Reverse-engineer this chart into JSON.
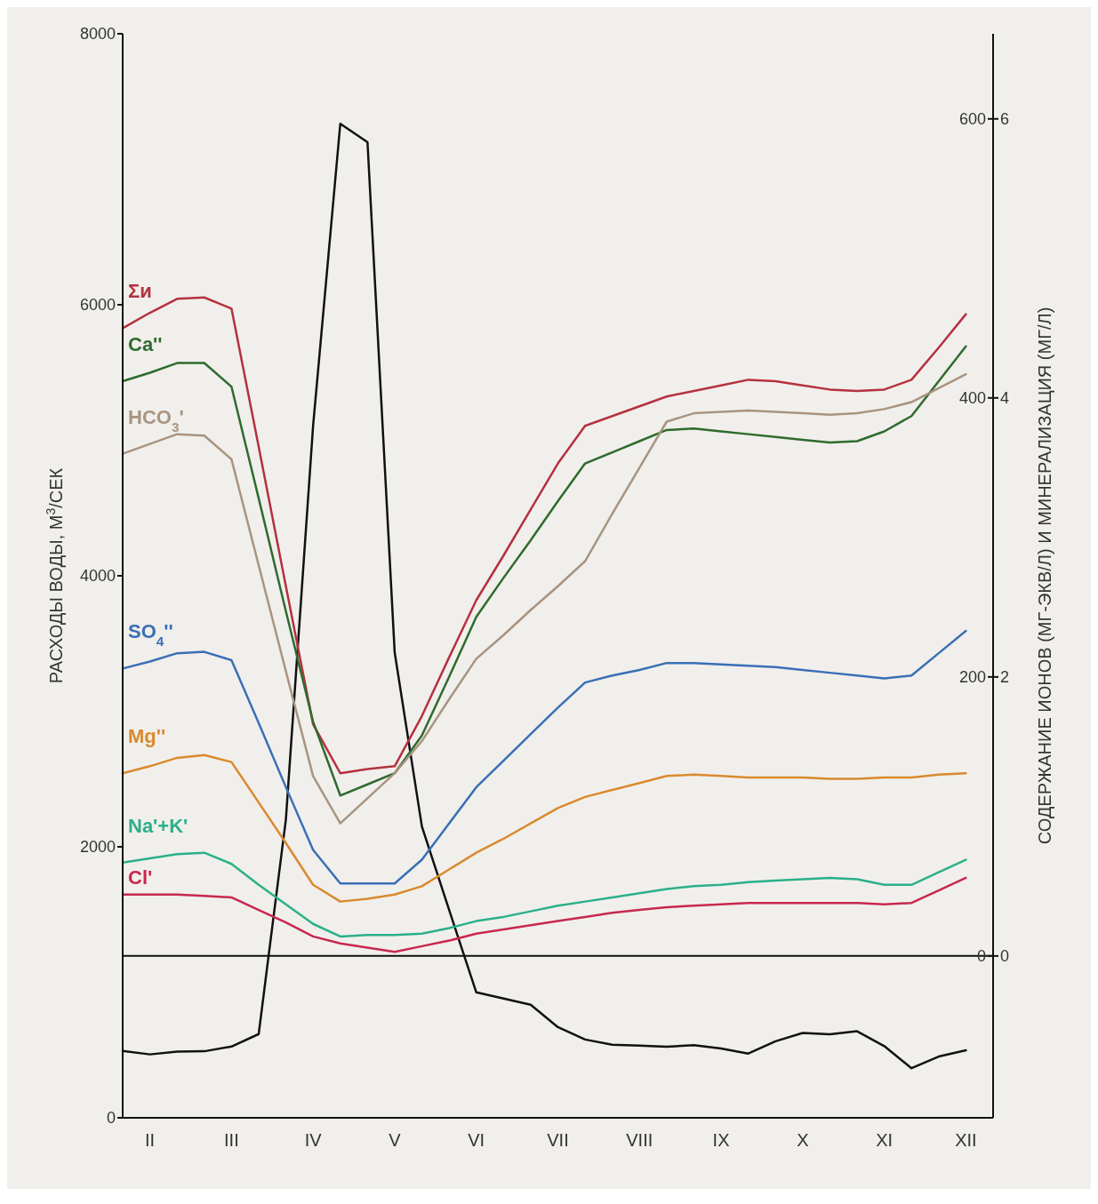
{
  "chart_data": {
    "type": "line",
    "ylabel": "РАСХОДЫ ВОДЫ, М$^{3}$/СЕК",
    "y2label": "СОДЕРЖАНИЕ ИОНОВ (МГ-ЭКВ/Л) И МИНЕРАЛИЗАЦИЯ (МГ/Л)",
    "categories": [
      null,
      "II",
      null,
      null,
      "III",
      null,
      null,
      "IV",
      null,
      null,
      "V",
      null,
      null,
      "VI",
      null,
      null,
      "VII",
      null,
      null,
      "VIII",
      null,
      null,
      "IX",
      null,
      null,
      "X",
      null,
      null,
      "XI",
      null,
      null,
      "XII",
      null
    ],
    "ylim": [
      0,
      8000
    ],
    "yticks": [
      0,
      2000,
      4000,
      6000,
      8000
    ],
    "y2lim": [
      -116,
      661
    ],
    "y2ticks": [
      0,
      200,
      400,
      600
    ],
    "y3lim": [
      -1.16,
      6.61
    ],
    "y3ticks": [
      0,
      2,
      4,
      6
    ],
    "legend": false,
    "marker": "none",
    "line_style": "solid",
    "ref_lines": [
      {
        "axis": "y2",
        "value": 0,
        "color": "#111111"
      }
    ],
    "series": [
      {
        "color": "#111111",
        "values": [
          494,
          468,
          488,
          491,
          526,
          618,
          2203,
          5106,
          7336,
          7200,
          3434,
          2150,
          1535,
          926,
          880,
          834,
          669,
          578,
          539,
          532,
          525,
          536,
          512,
          474,
          565,
          626,
          617,
          639,
          529,
          366,
          452,
          498,
          null
        ]
      },
      {
        "name": "Σи",
        "color": "#b5313f",
        "axis": "y2",
        "values": [
          450,
          461,
          471,
          472,
          464,
          365,
          265,
          166,
          131,
          134,
          136,
          172,
          214,
          255,
          287,
          320,
          353,
          380,
          387,
          394,
          401,
          405,
          409,
          413,
          412,
          409,
          406,
          405,
          406,
          413,
          436,
          460,
          null
        ]
      },
      {
        "name": "Ca''",
        "color": "#2e6b2e",
        "axis": "y3",
        "values": [
          4.12,
          4.18,
          4.25,
          4.25,
          4.08,
          3.28,
          2.47,
          1.68,
          1.15,
          1.23,
          1.31,
          1.58,
          2.0,
          2.43,
          2.71,
          2.98,
          3.26,
          3.53,
          3.61,
          3.69,
          3.77,
          3.78,
          3.76,
          3.74,
          3.72,
          3.7,
          3.68,
          3.69,
          3.76,
          3.87,
          4.12,
          4.37,
          null
        ]
      },
      {
        "name": "HCO$_{3}$'",
        "color": "#a89480",
        "axis": "y3",
        "values": [
          3.6,
          3.67,
          3.74,
          3.73,
          3.56,
          2.8,
          2.04,
          1.29,
          0.95,
          1.13,
          1.31,
          1.54,
          1.84,
          2.13,
          2.3,
          2.48,
          2.65,
          2.83,
          3.17,
          3.5,
          3.83,
          3.89,
          3.9,
          3.91,
          3.9,
          3.89,
          3.88,
          3.89,
          3.92,
          3.97,
          4.07,
          4.17,
          null
        ]
      },
      {
        "name": "SO$_{4}$''",
        "color": "#3a6fb5",
        "axis": "y3",
        "values": [
          2.06,
          2.11,
          2.17,
          2.18,
          2.12,
          1.67,
          1.21,
          0.76,
          0.52,
          0.52,
          0.52,
          0.69,
          0.95,
          1.21,
          1.4,
          1.59,
          1.78,
          1.96,
          2.01,
          2.05,
          2.1,
          2.1,
          2.09,
          2.08,
          2.07,
          2.05,
          2.03,
          2.01,
          1.99,
          2.01,
          2.17,
          2.33,
          null
        ]
      },
      {
        "name": "Mg''",
        "color": "#d98a2e",
        "axis": "y3",
        "values": [
          1.31,
          1.36,
          1.42,
          1.44,
          1.39,
          1.1,
          0.81,
          0.51,
          0.39,
          0.41,
          0.44,
          0.5,
          0.62,
          0.74,
          0.84,
          0.95,
          1.06,
          1.14,
          1.19,
          1.24,
          1.29,
          1.3,
          1.29,
          1.28,
          1.28,
          1.28,
          1.27,
          1.27,
          1.28,
          1.28,
          1.3,
          1.31,
          null
        ]
      },
      {
        "name": "Na'+K'",
        "color": "#2bb08a",
        "axis": "y3",
        "values": [
          0.67,
          0.7,
          0.73,
          0.74,
          0.66,
          0.51,
          0.37,
          0.23,
          0.14,
          0.15,
          0.15,
          0.16,
          0.2,
          0.25,
          0.28,
          0.32,
          0.36,
          0.39,
          0.42,
          0.45,
          0.48,
          0.5,
          0.51,
          0.53,
          0.54,
          0.55,
          0.56,
          0.55,
          0.51,
          0.51,
          0.6,
          0.69,
          null
        ]
      },
      {
        "name": "Cl'",
        "color": "#c8284e",
        "axis": "y3",
        "values": [
          0.44,
          0.44,
          0.44,
          0.43,
          0.42,
          0.33,
          0.24,
          0.14,
          0.09,
          0.06,
          0.03,
          0.07,
          0.11,
          0.16,
          0.19,
          0.22,
          0.25,
          0.28,
          0.31,
          0.33,
          0.35,
          0.36,
          0.37,
          0.38,
          0.38,
          0.38,
          0.38,
          0.38,
          0.37,
          0.38,
          0.47,
          0.56,
          null
        ]
      }
    ]
  }
}
